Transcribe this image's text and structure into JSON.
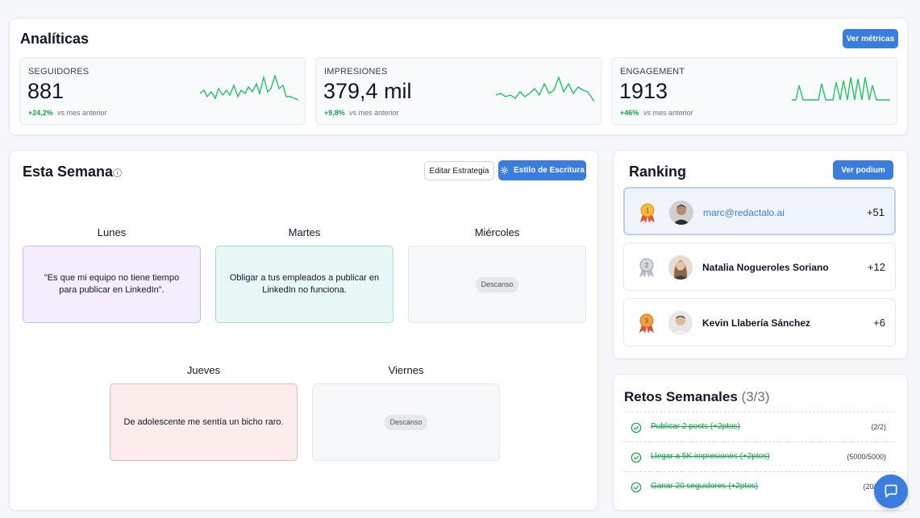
{
  "analytics": {
    "title": "Analíticas",
    "button_label": "Ver métricas",
    "metrics": [
      {
        "label": "SEGUIDORES",
        "value": "881",
        "delta": "+24,2%",
        "vs": "vs mes anterior"
      },
      {
        "label": "IMPRESIONES",
        "value": "379,4 mil",
        "delta": "+9,8%",
        "vs": "vs mes anterior"
      },
      {
        "label": "ENGAGEMENT",
        "value": "1913",
        "delta": "+46%",
        "vs": "vs mes anterior"
      }
    ],
    "sparkline_color": "#22c55e"
  },
  "week": {
    "title": "Esta Semana",
    "info_icon": "info-icon",
    "edit_label": "Editar Estrategia",
    "style_label": "Estilo de Escritura",
    "style_icon": "gear-icon",
    "days": [
      {
        "label": "Lunes",
        "text": "\"Es que mi equipo no tiene tiempo para publicar en LinkedIn\".",
        "color": "#f3edfd"
      },
      {
        "label": "Martes",
        "text": "Obligar a tus empleados a publicar en LinkedIn no funciona.",
        "color": "#e8f8f6"
      },
      {
        "label": "Miércoles",
        "text": "Descanso"
      },
      {
        "label": "Jueves",
        "text": "De adolescente me sentía un bicho raro.",
        "color": "#fdecec"
      },
      {
        "label": "Viernes",
        "text": "Descanso"
      }
    ]
  },
  "ranking": {
    "title": "Ranking",
    "button_label": "Ver podium",
    "rows": [
      {
        "medal": "1",
        "name": "marc@redactalo.ai",
        "score": "+51"
      },
      {
        "medal": "2",
        "name": "Natalia Nogueroles Soriano",
        "score": "+12"
      },
      {
        "medal": "3",
        "name": "Kevin Llabería Sánchez",
        "score": "+6"
      }
    ]
  },
  "challenges": {
    "title": "Retos Semanales",
    "count": "(3/3)",
    "items": [
      {
        "text": "Publicar 2 posts (+2ptos)",
        "progress": "(2/2)"
      },
      {
        "text": "Llegar a 5K impresiones (+2ptos)",
        "progress": "(5000/5000)"
      },
      {
        "text": "Ganar 20 seguidores (+2ptos)",
        "progress": "(20/20)"
      }
    ]
  },
  "chat": {
    "icon": "chat-icon"
  }
}
